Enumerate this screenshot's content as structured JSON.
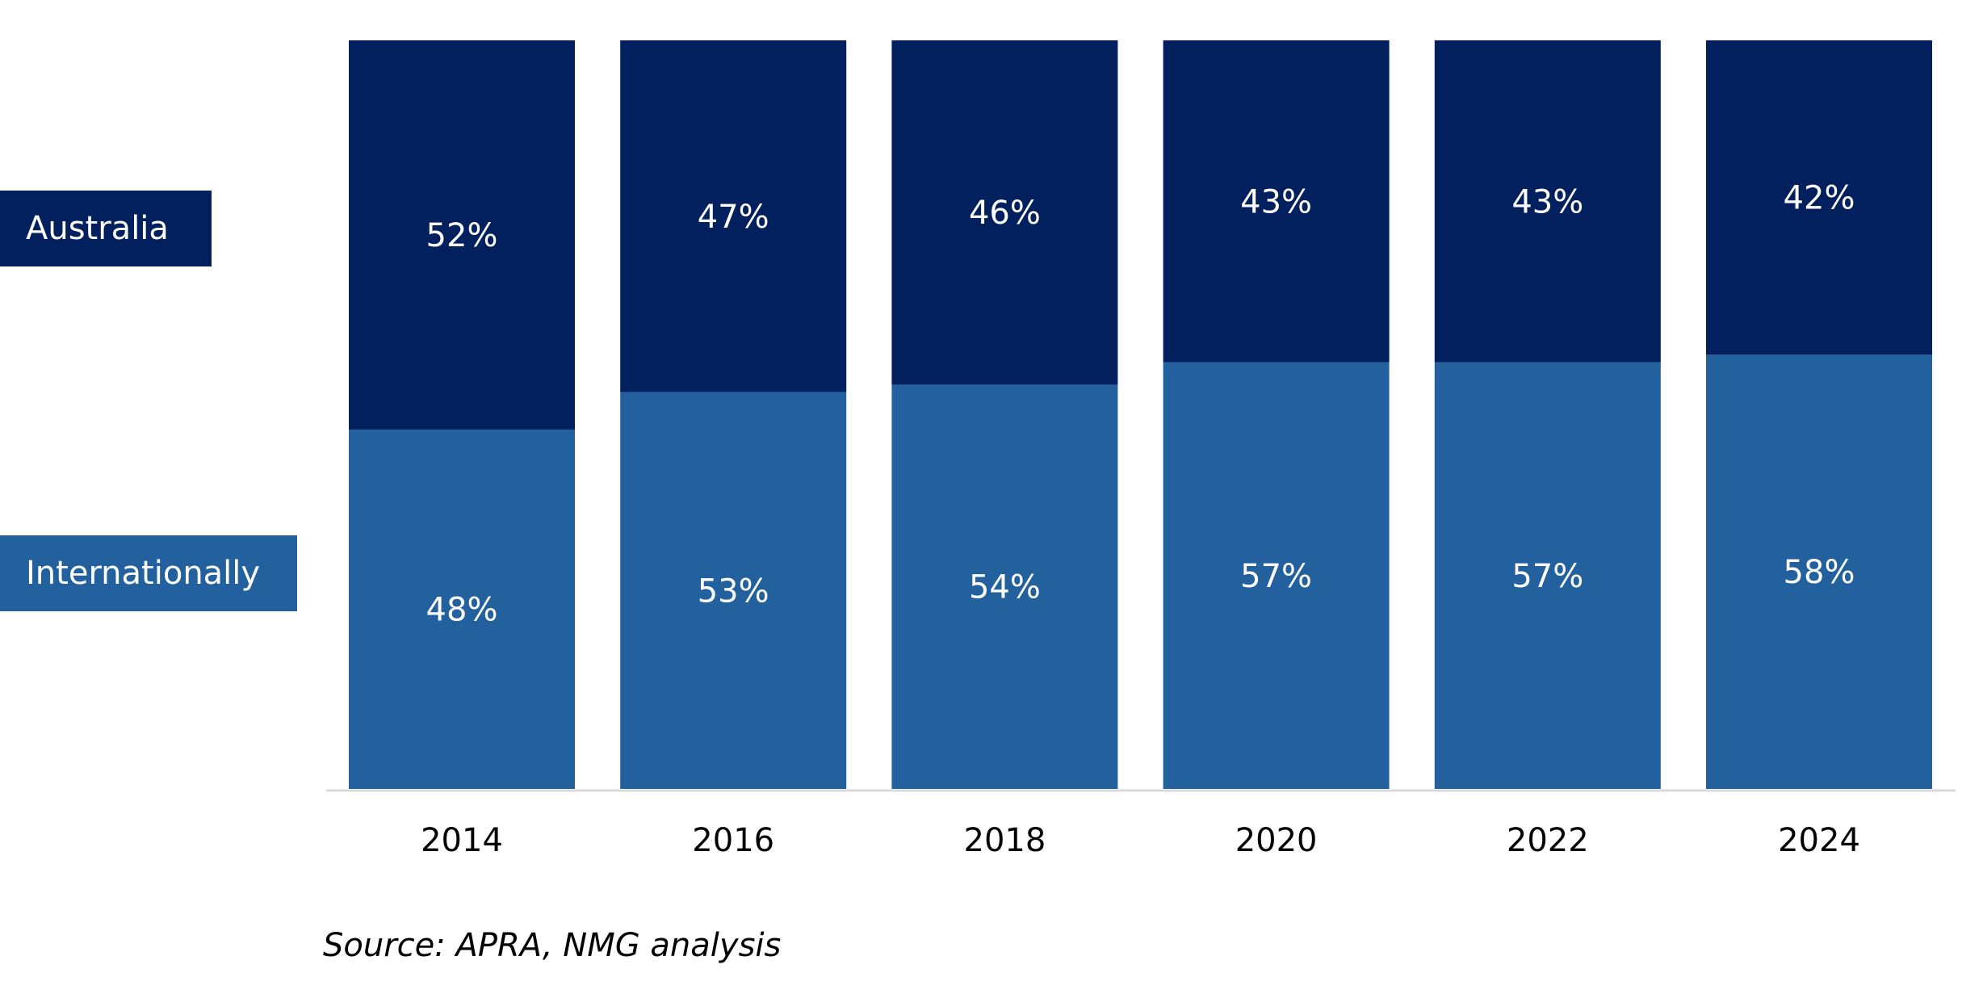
{
  "chart_data": {
    "type": "bar",
    "stacked": true,
    "categories": [
      "2014",
      "2016",
      "2018",
      "2020",
      "2022",
      "2024"
    ],
    "series": [
      {
        "name": "Internationally",
        "values": [
          48,
          53,
          54,
          57,
          57,
          58
        ],
        "labels": [
          "48%",
          "53%",
          "54%",
          "57%",
          "57%",
          "58%"
        ],
        "color": "#22619D"
      },
      {
        "name": "Australia",
        "values": [
          52,
          47,
          46,
          43,
          43,
          42
        ],
        "labels": [
          "52%",
          "47%",
          "46%",
          "43%",
          "43%",
          "42%"
        ],
        "color": "#021F5E"
      }
    ],
    "ylim": [
      0,
      100
    ],
    "grid": false,
    "legend_position": "left"
  },
  "source": "Source: APRA, NMG analysis",
  "colors": {
    "label_text": "#FFFFFF",
    "axis_line": "#D9D9D9",
    "tick_text": "#000000"
  }
}
